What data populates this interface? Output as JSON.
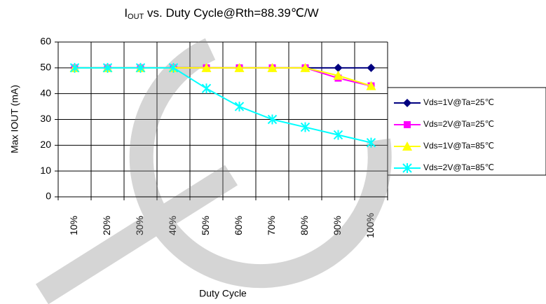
{
  "chart_data": {
    "type": "line",
    "title": {
      "main": "I",
      "sub": "OUT",
      "rest": " vs. Duty Cycle@Rth=88.39℃/W"
    },
    "x_label": "Duty Cycle",
    "y_label": "Max IOUT (mA)",
    "categories": [
      "10%",
      "20%",
      "30%",
      "40%",
      "50%",
      "60%",
      "70%",
      "80%",
      "90%",
      "100%"
    ],
    "series": [
      {
        "name": "Vds=1V@Ta=25℃",
        "color": "#000080",
        "marker": "diamond",
        "values": [
          50,
          50,
          50,
          50,
          50,
          50,
          50,
          50,
          50,
          50
        ]
      },
      {
        "name": "Vds=2V@Ta=25℃",
        "color": "#ff00ff",
        "marker": "square",
        "values": [
          50,
          50,
          50,
          50,
          50,
          50,
          50,
          50,
          46,
          43
        ]
      },
      {
        "name": "Vds=1V@Ta=85℃",
        "color": "#ffff00",
        "marker": "triangle",
        "values": [
          50,
          50,
          50,
          50,
          50,
          50,
          50,
          50,
          47,
          43
        ]
      },
      {
        "name": "Vds=2V@Ta=85℃",
        "color": "#00ffff",
        "marker": "x",
        "values": [
          50,
          50,
          50,
          50,
          42,
          35,
          30,
          27,
          24,
          21
        ]
      }
    ],
    "ylim": [
      0,
      60
    ],
    "yticks": [
      0,
      10,
      20,
      30,
      40,
      50,
      60
    ],
    "grid": true,
    "legend": "right"
  }
}
